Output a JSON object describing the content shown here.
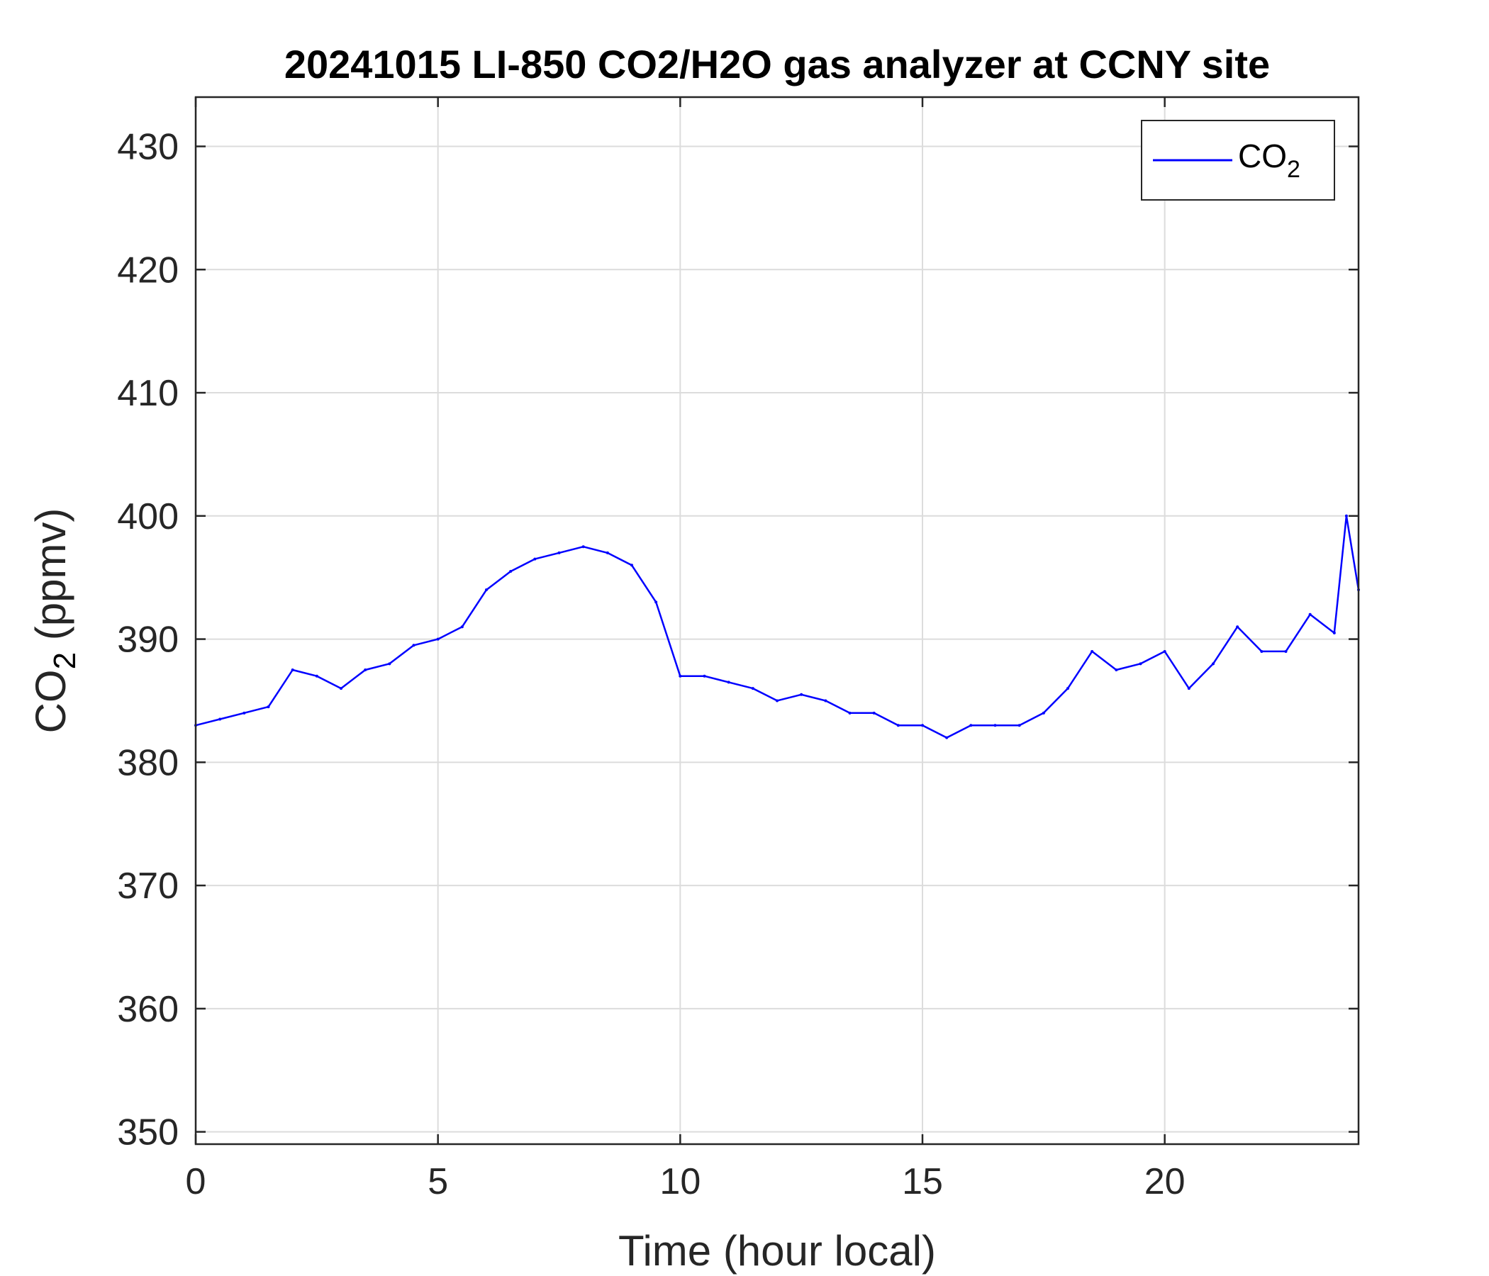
{
  "chart_data": {
    "type": "line",
    "title": "20241015 LI-850 CO2/H2O gas analyzer at CCNY site",
    "xlabel": "Time (hour local)",
    "ylabel": {
      "main": "CO",
      "sub": "2",
      "rest": " (ppmv)"
    },
    "xlim": [
      0,
      24
    ],
    "ylim": [
      349,
      434
    ],
    "xticks": [
      0,
      5,
      10,
      15,
      20
    ],
    "xtick_labels": [
      "0",
      "5",
      "10",
      "15",
      "20"
    ],
    "yticks": [
      350,
      360,
      370,
      380,
      390,
      400,
      410,
      420,
      430
    ],
    "ytick_labels": [
      "350",
      "360",
      "370",
      "380",
      "390",
      "400",
      "410",
      "420",
      "430"
    ],
    "grid": true,
    "legend_position": "top-right",
    "series": [
      {
        "name": {
          "main": "CO",
          "sub": "2"
        },
        "color": "#0000ff",
        "x": [
          0,
          0.5,
          1,
          1.5,
          2,
          2.5,
          3,
          3.5,
          4,
          4.5,
          5,
          5.5,
          6,
          6.5,
          7,
          7.5,
          8,
          8.5,
          9,
          9.5,
          10,
          10.5,
          11,
          11.5,
          12,
          12.5,
          13,
          13.5,
          14,
          14.5,
          15,
          15.5,
          16,
          16.5,
          17,
          17.5,
          18,
          18.5,
          19,
          19.5,
          20,
          20.5,
          21,
          21.5,
          22,
          22.5,
          23,
          23.5,
          23.75,
          24
        ],
        "y": [
          383,
          383.5,
          384,
          384.5,
          387.5,
          387,
          386,
          387.5,
          388,
          389.5,
          390,
          391,
          394,
          395.5,
          396.5,
          397,
          397.5,
          397,
          396,
          393,
          387,
          387,
          386.5,
          386,
          385,
          385.5,
          385,
          384,
          384,
          383,
          383,
          382,
          383,
          383,
          383,
          384,
          386,
          389,
          387.5,
          388,
          389,
          386,
          388,
          391,
          389,
          389,
          392,
          390.5,
          400,
          394
        ]
      }
    ]
  }
}
